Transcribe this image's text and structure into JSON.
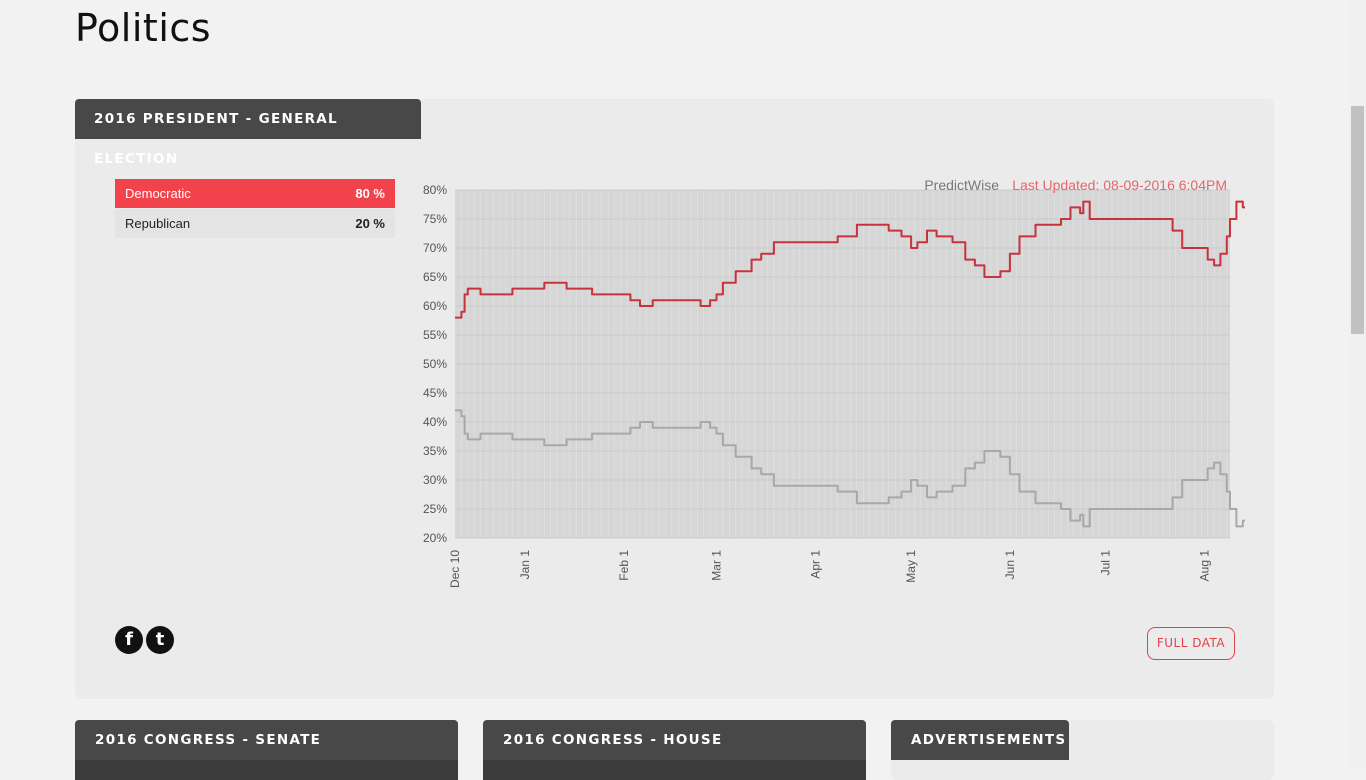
{
  "page": {
    "title": "Politics"
  },
  "main_card": {
    "header": "2016 PRESIDENT - GENERAL ELECTION",
    "parties": [
      {
        "name": "Democratic",
        "pct": "80 %"
      },
      {
        "name": "Republican",
        "pct": "20 %"
      }
    ],
    "source_label": "PredictWise",
    "updated_label": "Last Updated: 08-09-2016 6:04PM",
    "full_data_label": "FULL DATA",
    "social": {
      "facebook_glyph": "f",
      "twitter_glyph": "t"
    }
  },
  "bottom_cards": [
    {
      "header": "2016 CONGRESS - SENATE"
    },
    {
      "header": "2016 CONGRESS - HOUSE"
    },
    {
      "header": "ADVERTISEMENTS"
    }
  ],
  "colors": {
    "democratic": "#c8323d",
    "republican": "#a8a8a8",
    "accent": "#f2434c"
  },
  "chart_data": {
    "type": "line",
    "ylim": [
      20,
      80
    ],
    "y_ticks": [
      "80%",
      "75%",
      "70%",
      "65%",
      "60%",
      "55%",
      "50%",
      "45%",
      "40%",
      "35%",
      "30%",
      "25%",
      "20%"
    ],
    "x_ticks": [
      {
        "label": "Dec 10",
        "day": 0
      },
      {
        "label": "Jan 1",
        "day": 22
      },
      {
        "label": "Feb 1",
        "day": 53
      },
      {
        "label": "Mar 1",
        "day": 82
      },
      {
        "label": "Apr 1",
        "day": 113
      },
      {
        "label": "May 1",
        "day": 143
      },
      {
        "label": "Jun 1",
        "day": 174
      },
      {
        "label": "Jul 1",
        "day": 204
      },
      {
        "label": "Aug 1",
        "day": 235
      }
    ],
    "x_max_day": 243,
    "series": [
      {
        "name": "Democratic",
        "points": [
          [
            0,
            58
          ],
          [
            2,
            59
          ],
          [
            3,
            62
          ],
          [
            4,
            63
          ],
          [
            8,
            62
          ],
          [
            12,
            62
          ],
          [
            18,
            63
          ],
          [
            25,
            63
          ],
          [
            28,
            64
          ],
          [
            35,
            63
          ],
          [
            43,
            62
          ],
          [
            50,
            62
          ],
          [
            55,
            61
          ],
          [
            58,
            60
          ],
          [
            62,
            61
          ],
          [
            68,
            61
          ],
          [
            75,
            61
          ],
          [
            77,
            60
          ],
          [
            80,
            61
          ],
          [
            82,
            62
          ],
          [
            84,
            64
          ],
          [
            88,
            66
          ],
          [
            93,
            68
          ],
          [
            96,
            69
          ],
          [
            100,
            71
          ],
          [
            108,
            71
          ],
          [
            115,
            71
          ],
          [
            120,
            72
          ],
          [
            126,
            74
          ],
          [
            133,
            74
          ],
          [
            136,
            73
          ],
          [
            140,
            72
          ],
          [
            143,
            70
          ],
          [
            145,
            71
          ],
          [
            148,
            73
          ],
          [
            151,
            72
          ],
          [
            156,
            71
          ],
          [
            160,
            68
          ],
          [
            163,
            67
          ],
          [
            166,
            65
          ],
          [
            171,
            66
          ],
          [
            174,
            69
          ],
          [
            177,
            72
          ],
          [
            182,
            74
          ],
          [
            187,
            74
          ],
          [
            190,
            75
          ],
          [
            193,
            77
          ],
          [
            196,
            76
          ],
          [
            197,
            78
          ],
          [
            199,
            75
          ],
          [
            210,
            75
          ],
          [
            218,
            75
          ],
          [
            222,
            75
          ],
          [
            225,
            73
          ],
          [
            228,
            70
          ],
          [
            233,
            70
          ],
          [
            236,
            68
          ],
          [
            238,
            67
          ],
          [
            240,
            69
          ],
          [
            242,
            72
          ],
          [
            243,
            75
          ],
          [
            245,
            78
          ],
          [
            247,
            77
          ],
          [
            249,
            76
          ],
          [
            251,
            78
          ],
          [
            253,
            80
          ]
        ]
      },
      {
        "name": "Republican",
        "points": [
          [
            0,
            42
          ],
          [
            2,
            41
          ],
          [
            3,
            38
          ],
          [
            4,
            37
          ],
          [
            8,
            38
          ],
          [
            12,
            38
          ],
          [
            18,
            37
          ],
          [
            25,
            37
          ],
          [
            28,
            36
          ],
          [
            35,
            37
          ],
          [
            43,
            38
          ],
          [
            50,
            38
          ],
          [
            55,
            39
          ],
          [
            58,
            40
          ],
          [
            62,
            39
          ],
          [
            68,
            39
          ],
          [
            75,
            39
          ],
          [
            77,
            40
          ],
          [
            80,
            39
          ],
          [
            82,
            38
          ],
          [
            84,
            36
          ],
          [
            88,
            34
          ],
          [
            93,
            32
          ],
          [
            96,
            31
          ],
          [
            100,
            29
          ],
          [
            108,
            29
          ],
          [
            115,
            29
          ],
          [
            120,
            28
          ],
          [
            126,
            26
          ],
          [
            133,
            26
          ],
          [
            136,
            27
          ],
          [
            140,
            28
          ],
          [
            143,
            30
          ],
          [
            145,
            29
          ],
          [
            148,
            27
          ],
          [
            151,
            28
          ],
          [
            156,
            29
          ],
          [
            160,
            32
          ],
          [
            163,
            33
          ],
          [
            166,
            35
          ],
          [
            171,
            34
          ],
          [
            174,
            31
          ],
          [
            177,
            28
          ],
          [
            182,
            26
          ],
          [
            187,
            26
          ],
          [
            190,
            25
          ],
          [
            193,
            23
          ],
          [
            196,
            24
          ],
          [
            197,
            22
          ],
          [
            199,
            25
          ],
          [
            210,
            25
          ],
          [
            218,
            25
          ],
          [
            222,
            25
          ],
          [
            225,
            27
          ],
          [
            228,
            30
          ],
          [
            233,
            30
          ],
          [
            236,
            32
          ],
          [
            238,
            33
          ],
          [
            240,
            31
          ],
          [
            242,
            28
          ],
          [
            243,
            25
          ],
          [
            245,
            22
          ],
          [
            247,
            23
          ],
          [
            249,
            24
          ],
          [
            251,
            22
          ],
          [
            253,
            20
          ]
        ]
      }
    ]
  }
}
